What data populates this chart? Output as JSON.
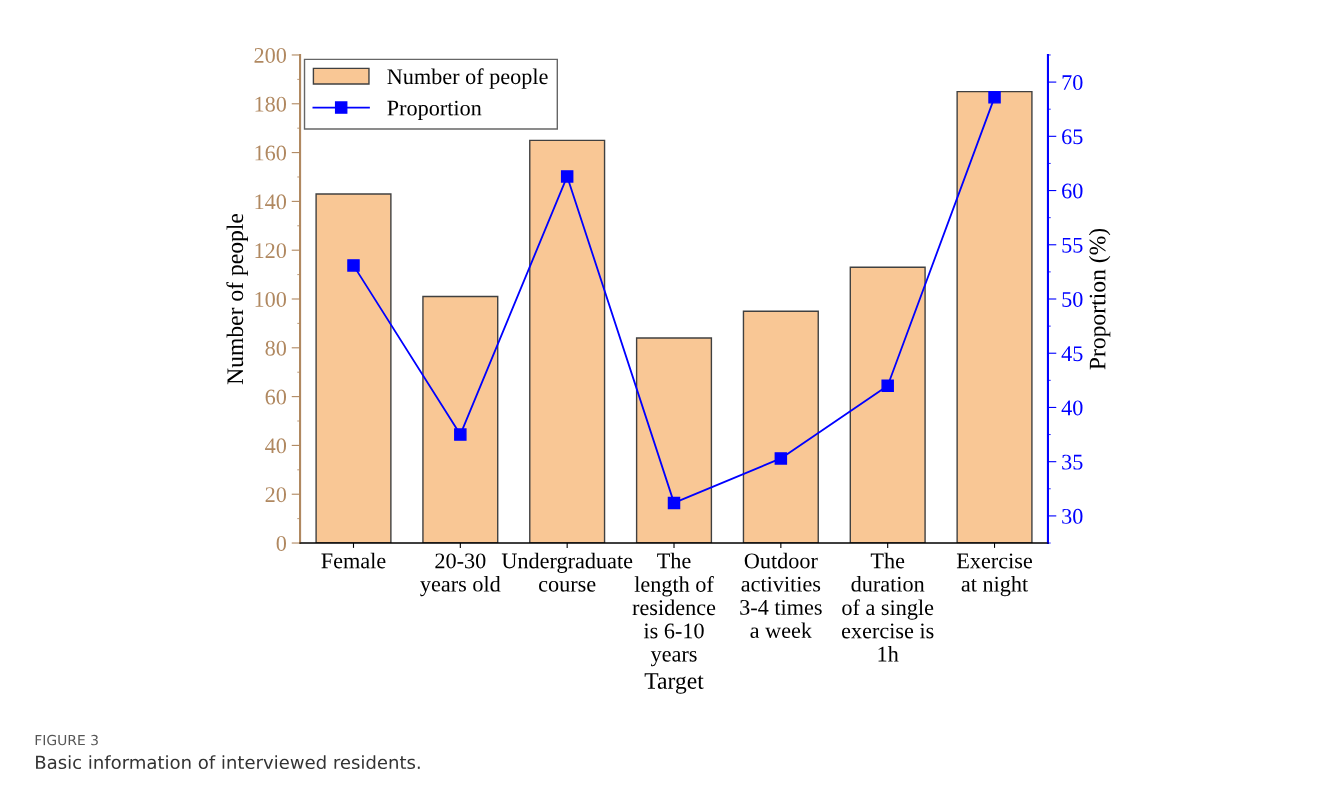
{
  "chart_data": {
    "type": "bar",
    "xlabel": "Target",
    "ylabel": "Number of people",
    "y2label": "Proportion (%)",
    "categories": [
      "Female",
      "20-30\nyears old",
      "Undergraduate\ncourse",
      "The\nlength of\nresidence\nis 6-10\nyears",
      "Outdoor\nactivities\n3-4 times\na week",
      "The\nduration\nof a single\nexercise is\n1h",
      "Exercise\nat night"
    ],
    "series": [
      {
        "name": "Number of people",
        "color": "#f9c795",
        "values": [
          143,
          101,
          165,
          84,
          95,
          113,
          185
        ]
      },
      {
        "name": "Proportion",
        "type": "line",
        "axis": "y2",
        "color": "#0000ff",
        "marker": "square",
        "values": [
          53.1,
          37.5,
          61.3,
          31.2,
          35.3,
          42.0,
          68.6
        ]
      }
    ],
    "ylim": [
      0,
      200
    ],
    "yticks": [
      0,
      20,
      40,
      60,
      80,
      100,
      120,
      140,
      160,
      180,
      200
    ],
    "y2lim": [
      27.5,
      72.5
    ],
    "y2ticks": [
      30,
      35,
      40,
      45,
      50,
      55,
      60,
      65,
      70
    ],
    "grid": false,
    "legend": "top left",
    "annotations": [
      "FIGURE 3",
      "Basic information of interviewed residents."
    ]
  }
}
